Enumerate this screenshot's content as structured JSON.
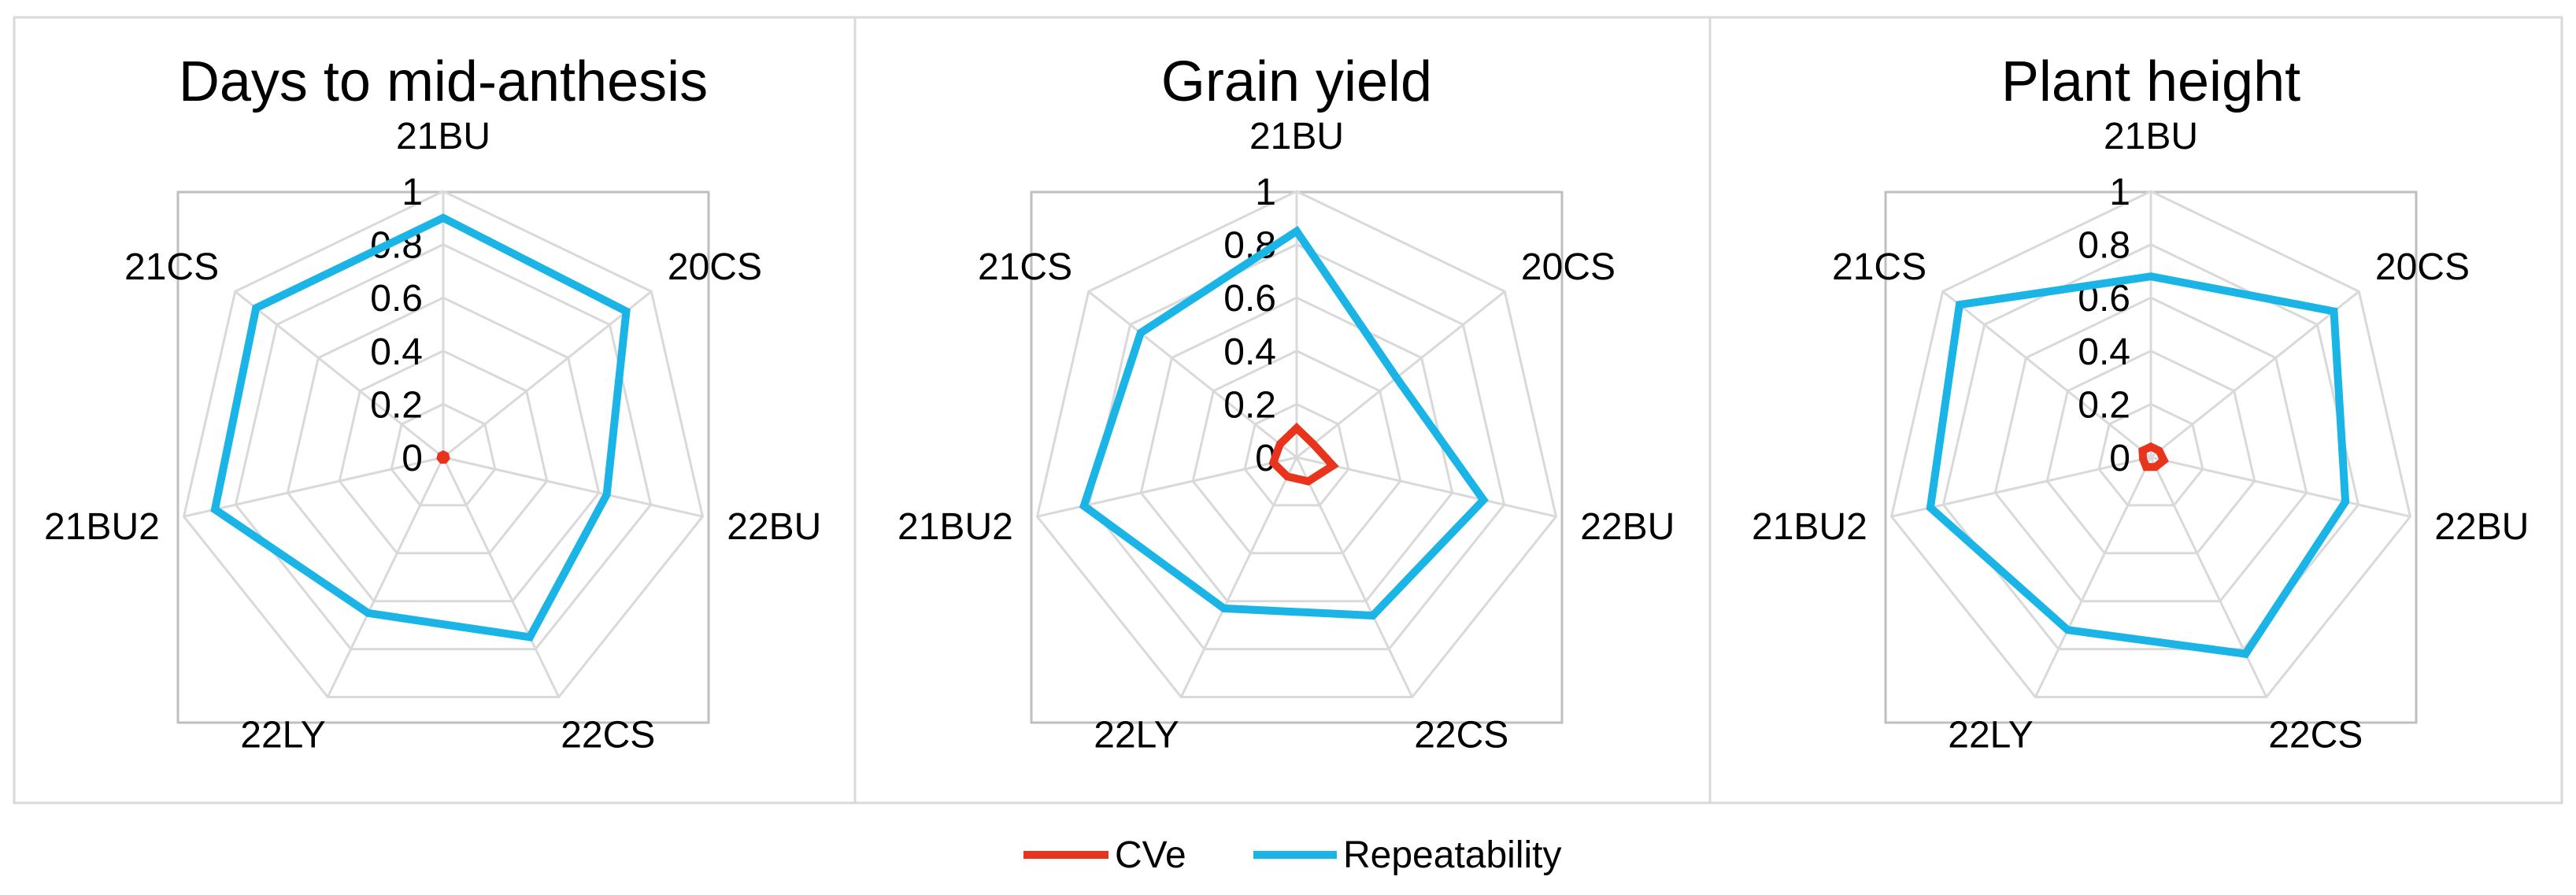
{
  "chart_data": [
    {
      "type": "radar",
      "title": "Days to mid-anthesis",
      "categories": [
        "21BU",
        "20CS",
        "22BU",
        "22CS",
        "22LY",
        "21BU2",
        "21CS"
      ],
      "rlim": [
        0,
        1
      ],
      "rticks": [
        "0",
        "0.2",
        "0.4",
        "0.6",
        "0.8",
        "1"
      ],
      "grid": true,
      "series": [
        {
          "name": "CVe",
          "color": "#e8341c",
          "values": [
            0.01,
            0.01,
            0.01,
            0.01,
            0.01,
            0.01,
            0.01
          ]
        },
        {
          "name": "Repeatability",
          "color": "#1ab5e6",
          "values": [
            0.9,
            0.88,
            0.63,
            0.75,
            0.65,
            0.88,
            0.9
          ]
        }
      ]
    },
    {
      "type": "radar",
      "title": "Grain yield",
      "categories": [
        "21BU",
        "20CS",
        "22BU",
        "22CS",
        "22LY",
        "21BU2",
        "21CS"
      ],
      "rlim": [
        0,
        1
      ],
      "rticks": [
        "0",
        "0.2",
        "0.4",
        "0.6",
        "0.8",
        "1"
      ],
      "grid": true,
      "series": [
        {
          "name": "CVe",
          "color": "#e8341c",
          "values": [
            0.11,
            0.08,
            0.14,
            0.1,
            0.08,
            0.09,
            0.08
          ]
        },
        {
          "name": "Repeatability",
          "color": "#1ab5e6",
          "values": [
            0.85,
            0.48,
            0.72,
            0.66,
            0.63,
            0.82,
            0.75
          ]
        }
      ]
    },
    {
      "type": "radar",
      "title": "Plant height",
      "categories": [
        "21BU",
        "20CS",
        "22BU",
        "22CS",
        "22LY",
        "21BU2",
        "21CS"
      ],
      "rlim": [
        0,
        1
      ],
      "rticks": [
        "0",
        "0.2",
        "0.4",
        "0.6",
        "0.8",
        "1"
      ],
      "grid": true,
      "series": [
        {
          "name": "CVe",
          "color": "#e8341c",
          "values": [
            0.04,
            0.04,
            0.05,
            0.04,
            0.04,
            0.03,
            0.04
          ]
        },
        {
          "name": "Repeatability",
          "color": "#1ab5e6",
          "values": [
            0.68,
            0.88,
            0.75,
            0.82,
            0.72,
            0.85,
            0.92
          ]
        }
      ]
    }
  ],
  "legend": {
    "placement": "bottom-center",
    "items": [
      {
        "label": "CVe",
        "color": "#e8341c"
      },
      {
        "label": "Repeatability",
        "color": "#1ab5e6"
      }
    ]
  }
}
